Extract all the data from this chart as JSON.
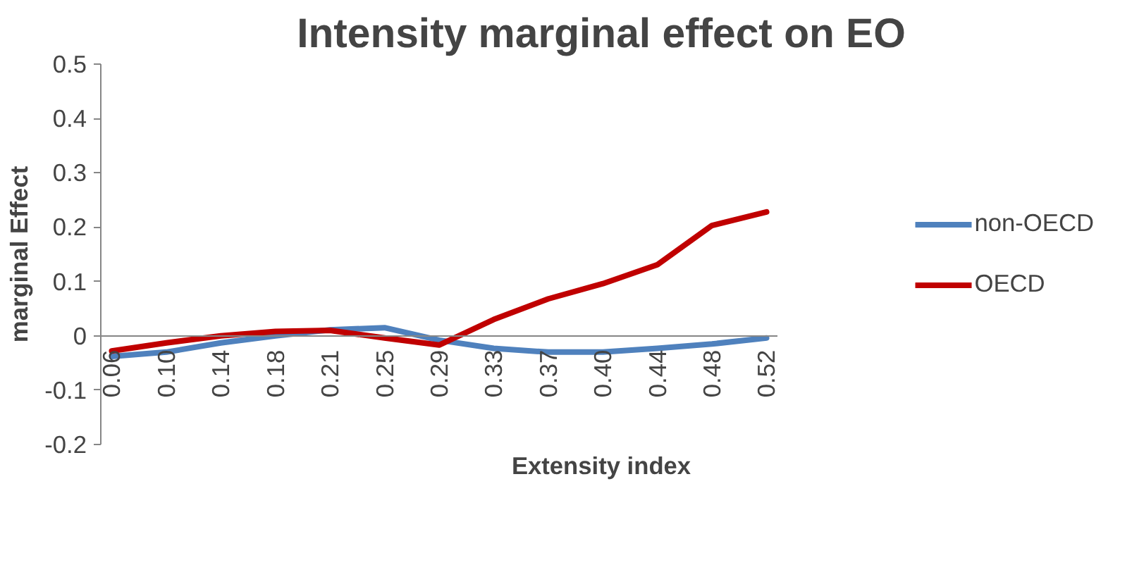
{
  "chart_data": {
    "type": "line",
    "title": "Intensity marginal effect on EO",
    "xlabel": "Extensity index",
    "ylabel": "marginal Effect",
    "categories": [
      "0.06",
      "0.10",
      "0.14",
      "0.18",
      "0.21",
      "0.25",
      "0.29",
      "0.33",
      "0.37",
      "0.40",
      "0.44",
      "0.48",
      "0.52"
    ],
    "series": [
      {
        "name": "non-OECD",
        "color": "#4f81bd",
        "values": [
          -0.038,
          -0.03,
          -0.013,
          0.0,
          0.011,
          0.015,
          -0.008,
          -0.023,
          -0.03,
          -0.03,
          -0.023,
          -0.015,
          -0.004
        ]
      },
      {
        "name": "OECD",
        "color": "#c00000",
        "values": [
          -0.028,
          -0.013,
          0.0,
          0.008,
          0.01,
          -0.004,
          -0.017,
          0.03,
          0.068,
          0.096,
          0.131,
          0.203,
          0.228
        ]
      }
    ],
    "ylim": [
      -0.2,
      0.5
    ],
    "yticks": [
      {
        "value": -0.2,
        "label": "-0.2"
      },
      {
        "value": -0.1,
        "label": "-0.1"
      },
      0,
      {
        "value": 0.1,
        "label": "0.1"
      },
      {
        "value": 0.2,
        "label": "0.2"
      },
      {
        "value": 0.3,
        "label": "0.3"
      },
      {
        "value": 0.4,
        "label": "0.4"
      },
      {
        "value": 0.5,
        "label": "0.5"
      }
    ],
    "grid": false,
    "legend": "right",
    "marker": "none",
    "line_style": "solid"
  }
}
